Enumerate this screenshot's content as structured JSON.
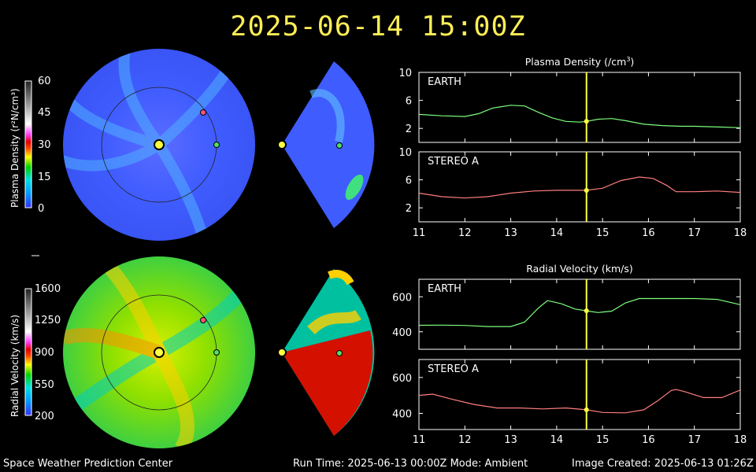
{
  "header": {
    "timestamp": "2025-06-14 15:00Z"
  },
  "footer": {
    "left": "Space Weather Prediction Center",
    "run": "Run Time: 2025-06-13 00:00Z  Mode: Ambient",
    "created": "Image Created: 2025-06-13 01:26Z"
  },
  "colorbars": {
    "density": {
      "label": "Plasma Density (r²N/cm³)",
      "ticks": [
        "60",
        "45",
        "30",
        "15",
        "0"
      ]
    },
    "velocity": {
      "label": "Radial Velocity (km/s)",
      "ticks": [
        "1600",
        "1250",
        "900",
        "550",
        "200"
      ]
    }
  },
  "colors": {
    "title": "#ffee55",
    "earth_series": "#7dff7d",
    "stereo_series": "#ff7d7d",
    "marker": "#ffff40",
    "earth_marker": "#55dd66",
    "stereo_marker": "#ff5577"
  },
  "chart_data": [
    {
      "type": "line",
      "title": "Plasma Density (/cm3)",
      "title_text": "Plasma Density (/cm",
      "title_sup": "3",
      "title_end": ")",
      "panels": [
        {
          "name": "EARTH",
          "color": "#7dff7d",
          "ylim": [
            0,
            10
          ],
          "yticks": [
            2,
            6,
            10
          ],
          "x": [
            11.0,
            11.5,
            12.0,
            12.3,
            12.6,
            13.0,
            13.3,
            13.6,
            13.9,
            14.2,
            14.5,
            14.65,
            14.9,
            15.2,
            15.5,
            15.9,
            16.3,
            16.7,
            17.0,
            17.5,
            18.0
          ],
          "y": [
            4.0,
            3.8,
            3.7,
            4.1,
            4.9,
            5.3,
            5.2,
            4.3,
            3.5,
            3.0,
            2.9,
            3.0,
            3.3,
            3.4,
            3.1,
            2.6,
            2.4,
            2.3,
            2.3,
            2.2,
            2.1
          ]
        },
        {
          "name": "STEREO A",
          "color": "#ff7d7d",
          "ylim": [
            0,
            10
          ],
          "yticks": [
            2,
            6,
            10
          ],
          "x": [
            11.0,
            11.5,
            12.0,
            12.5,
            13.0,
            13.5,
            14.0,
            14.3,
            14.65,
            15.0,
            15.4,
            15.8,
            16.1,
            16.4,
            16.6,
            17.0,
            17.5,
            18.0
          ],
          "y": [
            4.1,
            3.6,
            3.4,
            3.6,
            4.1,
            4.4,
            4.5,
            4.5,
            4.5,
            4.8,
            5.9,
            6.4,
            6.2,
            5.2,
            4.3,
            4.3,
            4.4,
            4.2
          ]
        }
      ],
      "x_ticks": [
        11,
        12,
        13,
        14,
        15,
        16,
        17,
        18
      ],
      "xlim": [
        11,
        18
      ],
      "marker_x": 14.65
    },
    {
      "type": "line",
      "title": "Radial Velocity (km/s)",
      "title_text": "Radial Velocity (km/s)",
      "title_sup": "",
      "title_end": "",
      "panels": [
        {
          "name": "EARTH",
          "color": "#7dff7d",
          "ylim": [
            300,
            700
          ],
          "yticks": [
            400,
            600
          ],
          "x": [
            11.0,
            11.5,
            12.0,
            12.5,
            13.0,
            13.3,
            13.6,
            13.8,
            14.1,
            14.4,
            14.65,
            14.9,
            15.2,
            15.5,
            15.8,
            16.0,
            16.5,
            17.0,
            17.5,
            18.0
          ],
          "y": [
            437,
            438,
            436,
            430,
            430,
            455,
            535,
            578,
            560,
            530,
            520,
            510,
            518,
            565,
            590,
            590,
            590,
            590,
            585,
            555
          ]
        },
        {
          "name": "STEREO A",
          "color": "#ff7d7d",
          "ylim": [
            310,
            700
          ],
          "yticks": [
            400,
            600
          ],
          "x": [
            11.0,
            11.3,
            11.7,
            12.2,
            12.7,
            13.2,
            13.7,
            14.2,
            14.65,
            15.0,
            15.5,
            15.9,
            16.2,
            16.5,
            16.6,
            16.8,
            17.2,
            17.6,
            18.0
          ],
          "y": [
            500,
            507,
            480,
            450,
            430,
            430,
            425,
            430,
            420,
            405,
            403,
            420,
            470,
            528,
            533,
            520,
            488,
            488,
            530
          ]
        }
      ],
      "x_ticks": [
        11,
        12,
        13,
        14,
        15,
        16,
        17,
        18
      ],
      "xlim": [
        11,
        18
      ],
      "marker_x": 14.65
    }
  ]
}
